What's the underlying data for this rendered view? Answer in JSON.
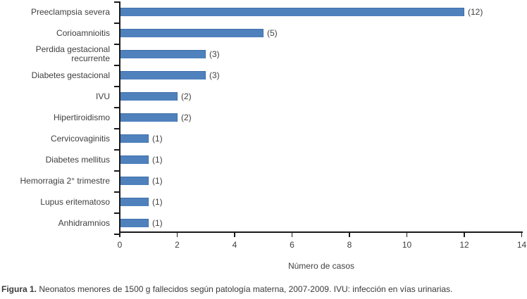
{
  "chart_data": {
    "type": "bar",
    "orientation": "horizontal",
    "title": "",
    "xlabel": "Número de casos",
    "ylabel": "",
    "xlim": [
      0,
      14
    ],
    "x_ticks": [
      0,
      2,
      4,
      6,
      8,
      10,
      12,
      14
    ],
    "grid": false,
    "legend": "none",
    "bar_color": "#4f81bd",
    "bar_border_color": "#3e6fa8",
    "categories": [
      "Preeclampsia severa",
      "Corioamnioitis",
      "Perdida gestacional recurrente",
      "Diabetes gestacional",
      "IVU",
      "Hipertiroidismo",
      "Cervicovaginitis",
      "Diabetes mellitus",
      "Hemorragia 2° trimestre",
      "Lupus eritematoso",
      "Anhidramnios"
    ],
    "values": [
      12,
      5,
      3,
      3,
      2,
      2,
      1,
      1,
      1,
      1,
      1
    ],
    "value_labels": [
      "(12)",
      "(5)",
      "(3)",
      "(3)",
      "(2)",
      "(2)",
      "(1)",
      "(1)",
      "(1)",
      "(1)",
      "(1)"
    ]
  },
  "caption": {
    "prefix": "Figura 1.",
    "text": " Neonatos menores de 1500 g fallecidos según patología materna, 2007-2009. IVU: infección en vías urinarias."
  }
}
